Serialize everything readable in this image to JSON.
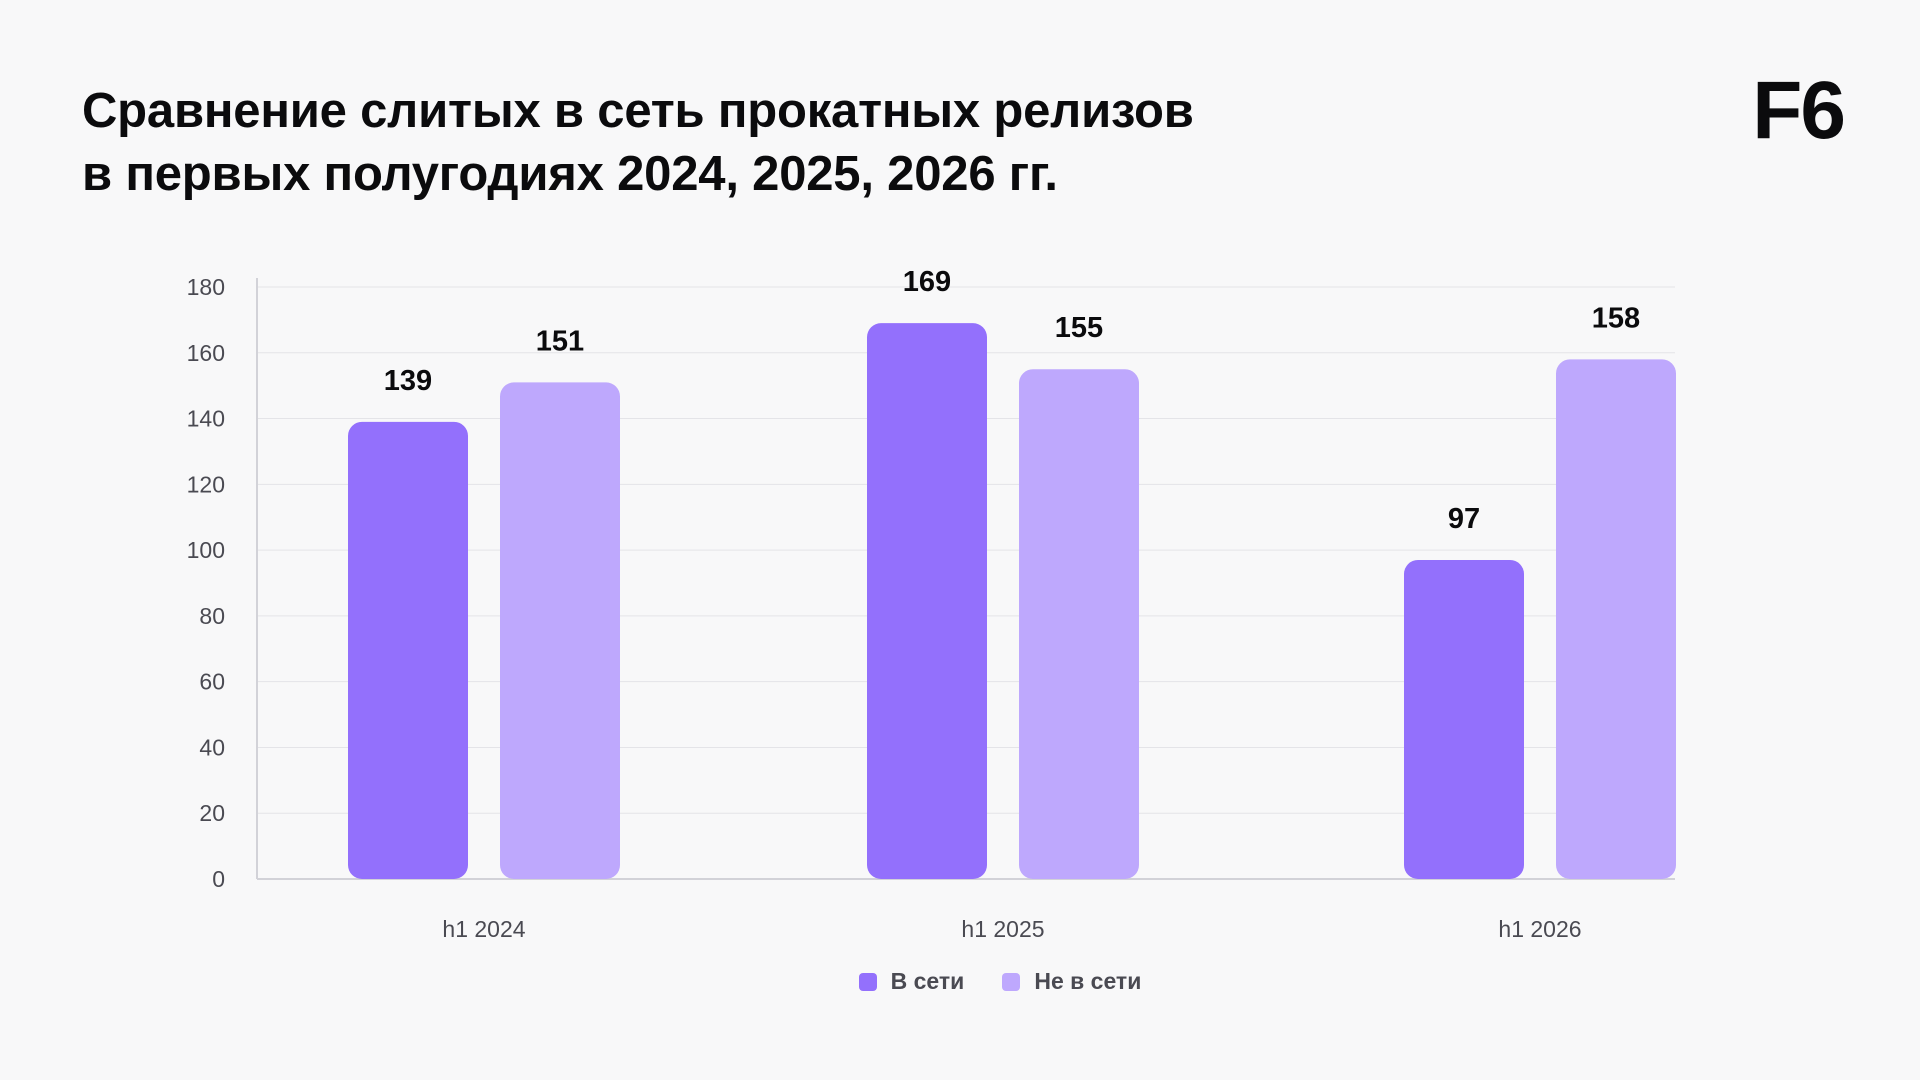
{
  "header": {
    "title_line1": "Сравнение слитых в сеть прокатных релизов",
    "title_line2": "в первых полугодиях 2024, 2025, 2026 гг.",
    "logo_text": "F6"
  },
  "chart_data": {
    "type": "bar",
    "categories": [
      "h1 2024",
      "h1 2025",
      "h1 2026"
    ],
    "series": [
      {
        "name": "В сети",
        "values": [
          139,
          169,
          97
        ],
        "color": "#9370fc"
      },
      {
        "name": "Не в сети",
        "values": [
          151,
          155,
          158
        ],
        "color": "#bea8fd"
      }
    ],
    "ylim": [
      0,
      180
    ],
    "yticks": [
      0,
      20,
      40,
      60,
      80,
      100,
      120,
      140,
      160,
      180
    ],
    "grid": true,
    "legend_position": "bottom-center",
    "data_labels": true
  }
}
